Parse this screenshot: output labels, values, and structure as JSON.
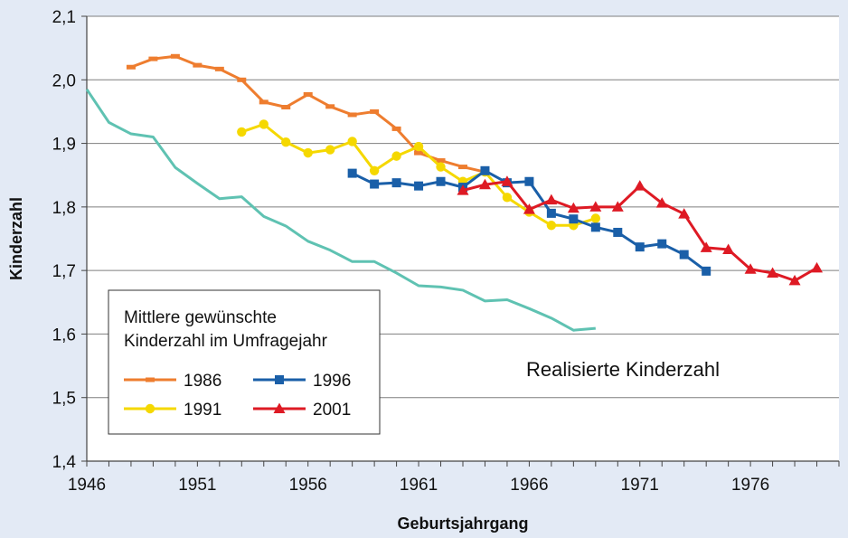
{
  "chart_data": {
    "type": "line",
    "ylabel": "Kinderzahl",
    "xlabel": "Geburtsjahrgang",
    "xlim": [
      1946,
      1980
    ],
    "ylim": [
      1.4,
      2.1
    ],
    "x_ticks": [
      "1946",
      "1951",
      "1956",
      "1961",
      "1966",
      "1971",
      "1976"
    ],
    "y_ticks": [
      "1,4",
      "1,5",
      "1,6",
      "1,7",
      "1,8",
      "1,9",
      "2,0",
      "2,1"
    ],
    "grid": "horizontal",
    "legend": {
      "title_lines": [
        "Mittlere gewünschte",
        "Kinderzahl im Umfragejahr"
      ],
      "placement": "lower-left"
    },
    "annotation": "Realisierte Kinderzahl",
    "series": [
      {
        "name": "1986",
        "color": "#ee7d2f",
        "marker": "dash",
        "x": [
          1948,
          1949,
          1950,
          1951,
          1952,
          1953,
          1954,
          1955,
          1956,
          1957,
          1958,
          1959,
          1960,
          1961,
          1962,
          1963,
          1964
        ],
        "y": [
          2.02,
          2.033,
          2.037,
          2.023,
          2.017,
          2.0,
          1.965,
          1.957,
          1.977,
          1.958,
          1.945,
          1.95,
          1.923,
          1.885,
          1.873,
          1.863,
          1.855
        ]
      },
      {
        "name": "1991",
        "color": "#f5d800",
        "marker": "circle",
        "x": [
          1953,
          1954,
          1955,
          1956,
          1957,
          1958,
          1959,
          1960,
          1961,
          1962,
          1963,
          1964,
          1965,
          1966,
          1967,
          1968,
          1969
        ],
        "y": [
          1.918,
          1.93,
          1.902,
          1.885,
          1.89,
          1.903,
          1.857,
          1.88,
          1.895,
          1.863,
          1.84,
          1.855,
          1.815,
          1.792,
          1.771,
          1.771,
          1.782
        ]
      },
      {
        "name": "1996",
        "color": "#1a5fa8",
        "marker": "square",
        "x": [
          1958,
          1959,
          1960,
          1961,
          1962,
          1963,
          1964,
          1965,
          1966,
          1967,
          1968,
          1969,
          1970,
          1971,
          1972,
          1973,
          1974
        ],
        "y": [
          1.853,
          1.836,
          1.838,
          1.833,
          1.84,
          1.831,
          1.857,
          1.838,
          1.84,
          1.79,
          1.781,
          1.768,
          1.76,
          1.737,
          1.742,
          1.725,
          1.699
        ]
      },
      {
        "name": "2001",
        "color": "#de1a24",
        "marker": "triangle",
        "x": [
          1963,
          1964,
          1965,
          1966,
          1967,
          1968,
          1969,
          1970,
          1971,
          1972,
          1973,
          1974,
          1975,
          1976,
          1977,
          1978,
          1979
        ],
        "y": [
          1.826,
          1.835,
          1.84,
          1.796,
          1.811,
          1.798,
          1.8,
          1.8,
          1.833,
          1.806,
          1.789,
          1.736,
          1.733,
          1.702,
          1.696,
          1.684,
          1.704
        ]
      },
      {
        "name": "Realisierte Kinderzahl",
        "color": "#5fc2b2",
        "marker": "none",
        "x": [
          1946,
          1947,
          1948,
          1949,
          1950,
          1951,
          1952,
          1953,
          1954,
          1955,
          1956,
          1957,
          1958,
          1959,
          1960,
          1961,
          1962,
          1963,
          1964,
          1965,
          1966,
          1967,
          1968,
          1969
        ],
        "y": [
          1.985,
          1.933,
          1.915,
          1.91,
          1.862,
          1.837,
          1.813,
          1.816,
          1.785,
          1.77,
          1.746,
          1.732,
          1.714,
          1.714,
          1.696,
          1.676,
          1.674,
          1.669,
          1.652,
          1.654,
          1.64,
          1.625,
          1.606,
          1.609
        ]
      }
    ]
  }
}
